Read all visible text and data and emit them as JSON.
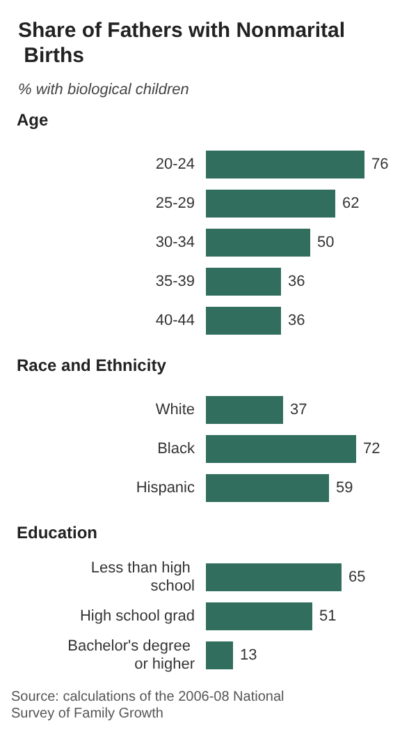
{
  "chart_data": [
    {
      "type": "bar",
      "orientation": "horizontal",
      "title": "Share of Fathers with Nonmarital Births",
      "subtitle": "% with biological children",
      "ylabel": "Age",
      "categories": [
        "20-24",
        "25-29",
        "30-34",
        "35-39",
        "40-44"
      ],
      "values": [
        76,
        62,
        50,
        36,
        36
      ],
      "color": "#316e5e",
      "data_labels": true
    },
    {
      "type": "bar",
      "orientation": "horizontal",
      "ylabel": "Race and Ethnicity",
      "categories": [
        "White",
        "Black",
        "Hispanic"
      ],
      "values": [
        37,
        72,
        59
      ],
      "color": "#316e5e",
      "data_labels": true
    },
    {
      "type": "bar",
      "orientation": "horizontal",
      "ylabel": "Education",
      "categories": [
        "Less than high school",
        "High school grad",
        "Bachelor's degree or higher"
      ],
      "values": [
        65,
        51,
        13
      ],
      "color": "#316e5e",
      "data_labels": true,
      "annotations": [
        "Source: calculations of the 2006-08 National Survey of Family Growth"
      ]
    }
  ]
}
